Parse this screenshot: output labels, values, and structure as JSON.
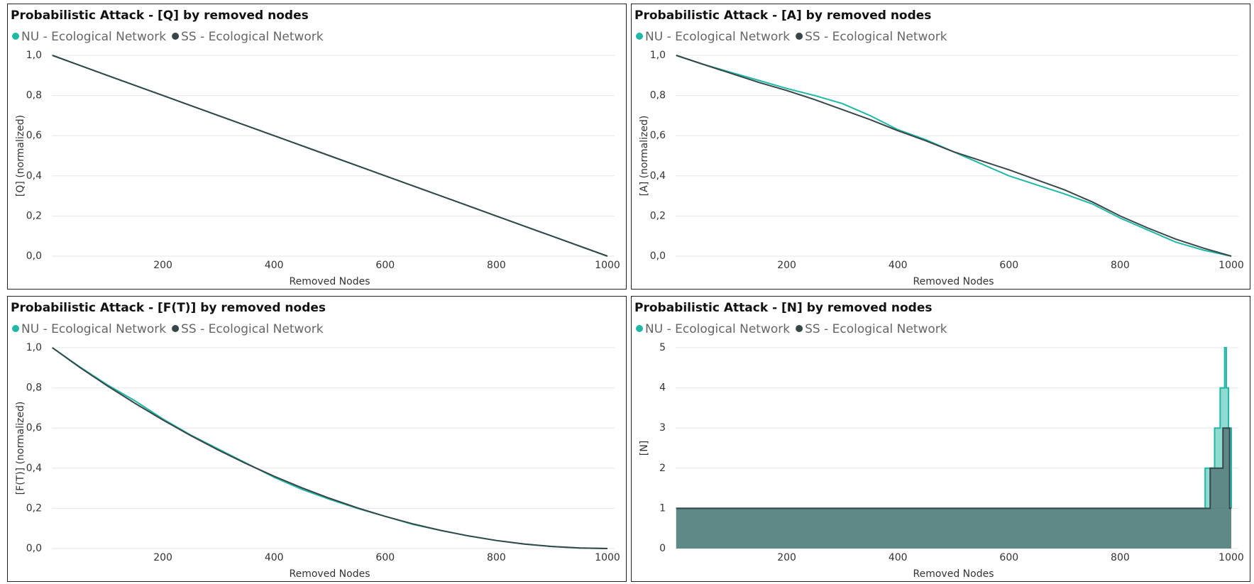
{
  "chart_data": [
    {
      "type": "line",
      "title": "Probabilistic Attack - [Q] by removed nodes",
      "x_label": "Removed Nodes",
      "y_label": "[Q] (normalized)",
      "x": [
        1,
        100,
        200,
        300,
        400,
        500,
        600,
        700,
        800,
        900,
        1000
      ],
      "series": [
        {
          "name": "NU - Ecological Network",
          "color": "#1fb8a6",
          "values": [
            1,
            0.9,
            0.8,
            0.7,
            0.6,
            0.5,
            0.4,
            0.3,
            0.2,
            0.1,
            0
          ]
        },
        {
          "name": "SS - Ecological Network",
          "color": "#374649",
          "values": [
            1,
            0.9,
            0.8,
            0.7,
            0.6,
            0.5,
            0.4,
            0.3,
            0.2,
            0.1,
            0
          ]
        }
      ],
      "xlim": [
        0,
        1000
      ],
      "xticks": [
        200,
        400,
        600,
        800,
        1000
      ],
      "ylim": [
        0,
        1
      ],
      "yticks": [
        {
          "value": 0,
          "label": "0,0"
        },
        {
          "value": 0.2,
          "label": "0,2"
        },
        {
          "value": 0.4,
          "label": "0,4"
        },
        {
          "value": 0.6,
          "label": "0,6"
        },
        {
          "value": 0.8,
          "label": "0,8"
        },
        {
          "value": 1,
          "label": "1,0"
        }
      ],
      "grid": true
    },
    {
      "type": "line",
      "title": "Probabilistic Attack - [A] by removed nodes",
      "x_label": "Removed Nodes",
      "y_label": "[A] (normalized)",
      "x": [
        1,
        50,
        100,
        150,
        200,
        250,
        300,
        350,
        400,
        450,
        500,
        550,
        600,
        650,
        700,
        750,
        800,
        850,
        900,
        950,
        1000
      ],
      "series": [
        {
          "name": "NU - Ecological Network",
          "color": "#1fb8a6",
          "values": [
            1,
            0.955,
            0.915,
            0.875,
            0.835,
            0.8,
            0.76,
            0.7,
            0.63,
            0.58,
            0.52,
            0.46,
            0.4,
            0.355,
            0.31,
            0.26,
            0.19,
            0.13,
            0.07,
            0.03,
            0
          ]
        },
        {
          "name": "SS - Ecological Network",
          "color": "#374649",
          "values": [
            1,
            0.955,
            0.91,
            0.865,
            0.825,
            0.78,
            0.73,
            0.68,
            0.625,
            0.575,
            0.52,
            0.475,
            0.43,
            0.38,
            0.33,
            0.27,
            0.2,
            0.14,
            0.085,
            0.04,
            0
          ]
        }
      ],
      "xlim": [
        0,
        1000
      ],
      "xticks": [
        200,
        400,
        600,
        800,
        1000
      ],
      "ylim": [
        0,
        1
      ],
      "yticks": [
        {
          "value": 0,
          "label": "0,0"
        },
        {
          "value": 0.2,
          "label": "0,2"
        },
        {
          "value": 0.4,
          "label": "0,4"
        },
        {
          "value": 0.6,
          "label": "0,6"
        },
        {
          "value": 0.8,
          "label": "0,8"
        },
        {
          "value": 1,
          "label": "1,0"
        }
      ],
      "grid": true
    },
    {
      "type": "line",
      "title": "Probabilistic Attack - [F(T)] by removed nodes",
      "x_label": "Removed Nodes",
      "y_label": "[F(T)] (normalized)",
      "x": [
        1,
        50,
        100,
        150,
        200,
        250,
        300,
        350,
        400,
        450,
        500,
        550,
        600,
        650,
        700,
        750,
        800,
        850,
        900,
        950,
        1000
      ],
      "series": [
        {
          "name": "NU - Ecological Network",
          "color": "#1fb8a6",
          "values": [
            1,
            0.905,
            0.815,
            0.735,
            0.645,
            0.565,
            0.495,
            0.425,
            0.355,
            0.295,
            0.245,
            0.2,
            0.16,
            0.12,
            0.09,
            0.063,
            0.04,
            0.022,
            0.01,
            0.0025,
            0
          ]
        },
        {
          "name": "SS - Ecological Network",
          "color": "#374649",
          "values": [
            1,
            0.9025,
            0.81,
            0.7225,
            0.64,
            0.5625,
            0.49,
            0.4225,
            0.36,
            0.3025,
            0.25,
            0.2025,
            0.16,
            0.1225,
            0.09,
            0.0625,
            0.04,
            0.0225,
            0.01,
            0.0025,
            0
          ]
        }
      ],
      "xlim": [
        0,
        1000
      ],
      "xticks": [
        200,
        400,
        600,
        800,
        1000
      ],
      "ylim": [
        0,
        1
      ],
      "yticks": [
        {
          "value": 0,
          "label": "0,0"
        },
        {
          "value": 0.2,
          "label": "0,2"
        },
        {
          "value": 0.4,
          "label": "0,4"
        },
        {
          "value": 0.6,
          "label": "0,6"
        },
        {
          "value": 0.8,
          "label": "0,8"
        },
        {
          "value": 1,
          "label": "1,0"
        }
      ],
      "grid": true
    },
    {
      "type": "area",
      "title": "Probabilistic Attack - [N] by removed nodes",
      "x_label": "Removed Nodes",
      "y_label": "[N]",
      "series": [
        {
          "name": "NU - Ecological Network",
          "color": "#1fb8a6",
          "x": [
            1,
            953,
            953,
            970,
            970,
            980,
            980,
            988,
            988,
            991,
            991,
            995,
            995,
            1000,
            1000
          ],
          "values": [
            1,
            1,
            2,
            2,
            3,
            3,
            4,
            4,
            5,
            5,
            4,
            4,
            3,
            3,
            1
          ]
        },
        {
          "name": "SS - Ecological Network",
          "color": "#374649",
          "x": [
            1,
            962,
            962,
            985,
            985,
            997,
            997,
            1000
          ],
          "values": [
            1,
            1,
            2,
            2,
            3,
            3,
            1,
            1
          ]
        }
      ],
      "xlim": [
        0,
        1000
      ],
      "xticks": [
        200,
        400,
        600,
        800,
        1000
      ],
      "ylim": [
        0,
        5
      ],
      "yticks": [
        0,
        1,
        2,
        3,
        4,
        5
      ],
      "grid": true
    }
  ]
}
